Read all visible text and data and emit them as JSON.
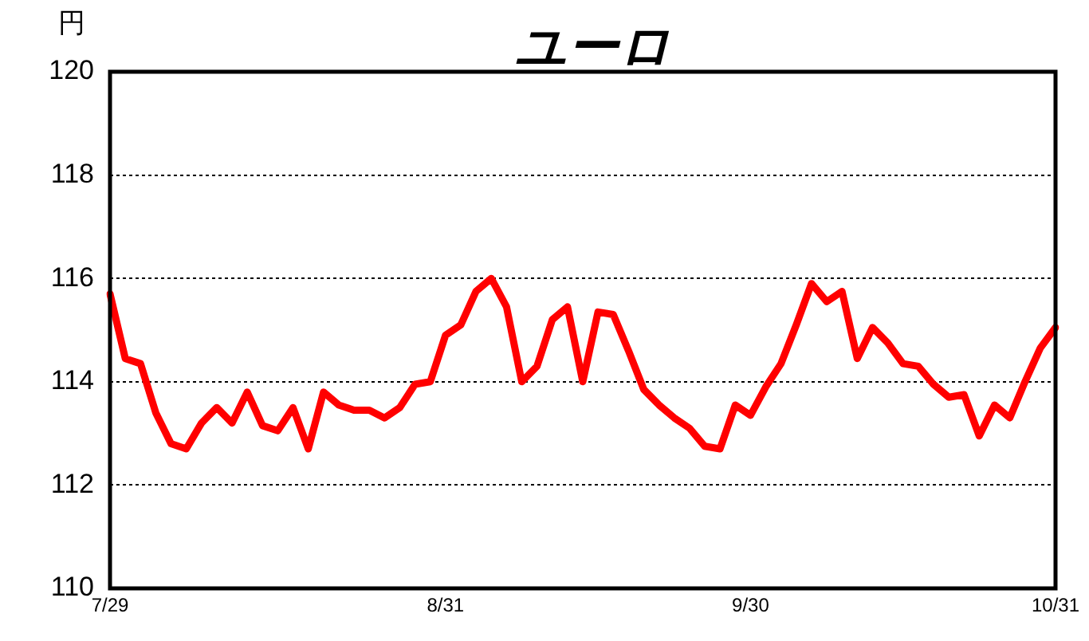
{
  "chart_data": {
    "type": "line",
    "title": "ユーロ",
    "ylabel": "円",
    "categories": [
      "7/29",
      null,
      null,
      null,
      null,
      null,
      null,
      null,
      null,
      null,
      null,
      null,
      null,
      null,
      null,
      null,
      null,
      null,
      null,
      null,
      null,
      null,
      "8/31",
      null,
      null,
      null,
      null,
      null,
      null,
      null,
      null,
      null,
      null,
      null,
      null,
      null,
      null,
      null,
      null,
      null,
      null,
      null,
      "9/30",
      null,
      null,
      null,
      null,
      null,
      null,
      null,
      null,
      null,
      null,
      null,
      null,
      null,
      null,
      null,
      null,
      null,
      null,
      null,
      "10/31"
    ],
    "series": [
      {
        "color": "#ff0000",
        "values": [
          115.7,
          114.45,
          114.35,
          113.4,
          112.8,
          112.7,
          113.2,
          113.5,
          113.2,
          113.8,
          113.15,
          113.05,
          113.5,
          112.7,
          113.8,
          113.55,
          113.45,
          113.45,
          113.3,
          113.5,
          113.95,
          114.0,
          114.9,
          115.1,
          115.75,
          116.0,
          115.45,
          114.0,
          114.3,
          115.2,
          115.45,
          114.0,
          115.35,
          115.3,
          114.6,
          113.85,
          113.55,
          113.3,
          113.1,
          112.75,
          112.7,
          113.55,
          113.35,
          113.9,
          114.35,
          115.1,
          115.9,
          115.55,
          115.75,
          114.45,
          115.05,
          114.75,
          114.35,
          114.3,
          113.95,
          113.7,
          113.75,
          112.95,
          113.55,
          113.3,
          114.0,
          114.65,
          115.05
        ]
      }
    ],
    "ylim": [
      110,
      120
    ],
    "yticks": [
      110,
      112,
      114,
      116,
      118,
      120
    ],
    "grid": "y",
    "legend": false,
    "marker": "none",
    "line_style": "solid"
  }
}
